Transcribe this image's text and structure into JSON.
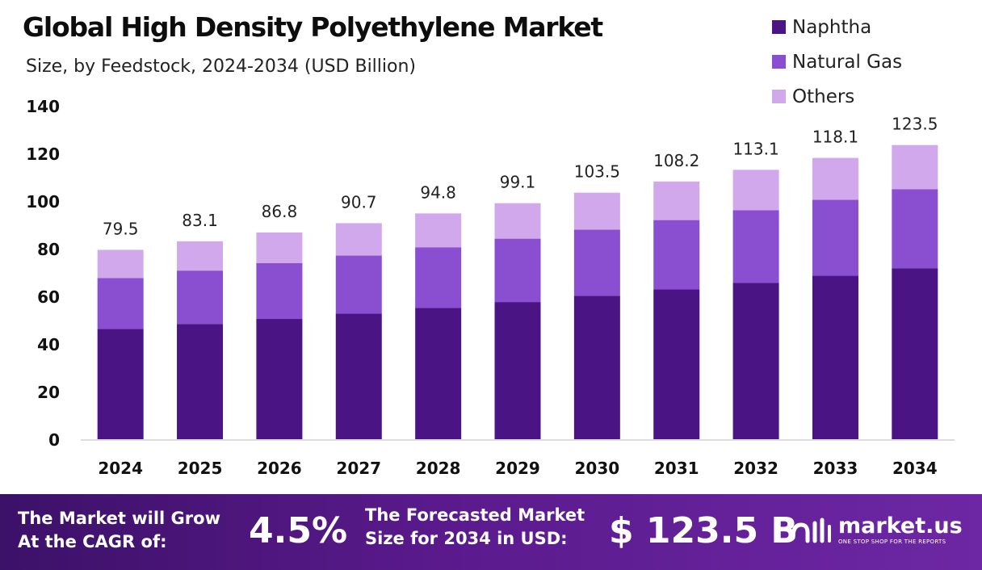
{
  "chart_data": {
    "type": "bar",
    "stacked": true,
    "title": "Global High Density Polyethylene Market",
    "subtitle": "Size, by Feedstock, 2024-2034 (USD Billion)",
    "categories": [
      "2024",
      "2025",
      "2026",
      "2027",
      "2028",
      "2029",
      "2030",
      "2031",
      "2032",
      "2033",
      "2034"
    ],
    "series": [
      {
        "name": "Naphtha",
        "color": "#4b1484",
        "values": [
          46.3,
          48.4,
          50.5,
          52.7,
          55.1,
          57.6,
          60.2,
          62.9,
          65.7,
          68.7,
          71.8
        ]
      },
      {
        "name": "Natural Gas",
        "color": "#8a4fd0",
        "values": [
          21.4,
          22.4,
          23.4,
          24.4,
          25.5,
          26.6,
          27.8,
          29.1,
          30.4,
          31.8,
          33.2
        ]
      },
      {
        "name": "Others",
        "color": "#d1a8ec",
        "values": [
          11.8,
          12.3,
          12.9,
          13.6,
          14.2,
          14.9,
          15.5,
          16.2,
          17.0,
          17.6,
          18.5
        ]
      }
    ],
    "totals": [
      "79.5",
      "83.1",
      "86.8",
      "90.7",
      "94.8",
      "99.1",
      "103.5",
      "108.2",
      "113.1",
      "118.1",
      "123.5"
    ],
    "yticks": [
      "0",
      "20",
      "40",
      "60",
      "80",
      "100",
      "120",
      "140"
    ],
    "ylim": [
      0,
      140
    ],
    "grid": false,
    "legend": "top-right"
  },
  "footer": {
    "cagr_line1": "The Market will Grow",
    "cagr_line2": "At the CAGR of:",
    "cagr_value": "4.5%",
    "forecast_line1": "The Forecasted Market",
    "forecast_line2": "Size for 2034 in USD:",
    "forecast_value": "$ 123.5 B",
    "logo_name": "market.us",
    "logo_tagline": "ONE STOP SHOP FOR THE REPORTS"
  }
}
